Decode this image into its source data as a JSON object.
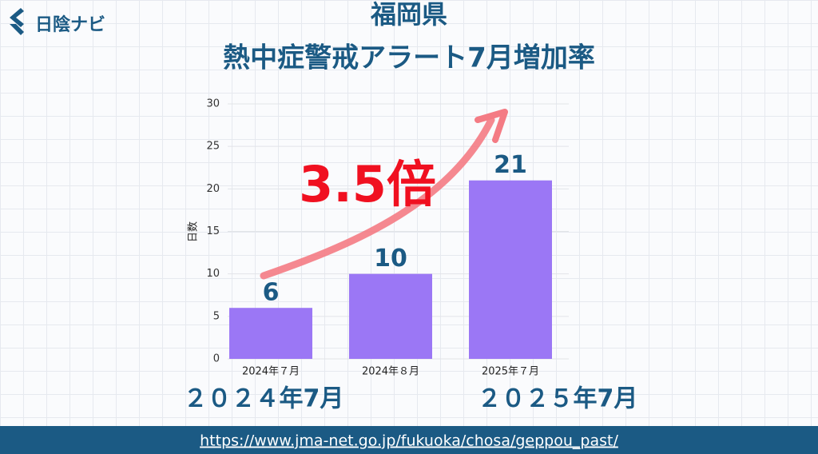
{
  "logo": "日陰ナビ",
  "source": "https://www.jma-net.go.jp/fukuoka/chosa/geppou_past/",
  "chart_data": {
    "type": "bar",
    "title": "福岡県",
    "subtitle": "熱中症警戒アラート7月増加率",
    "y_label": "日数",
    "categories": [
      "2024年７月",
      "2024年８月",
      "2025年７月"
    ],
    "values": [
      6,
      10,
      21
    ],
    "color": "#9b77f5",
    "ylim": [
      0,
      30
    ],
    "yticks": [
      0,
      5,
      10,
      15,
      20,
      25,
      30
    ],
    "grid": true,
    "annotations": [
      "3.5倍",
      "２０２４年7月",
      "２０２５年7月"
    ]
  }
}
